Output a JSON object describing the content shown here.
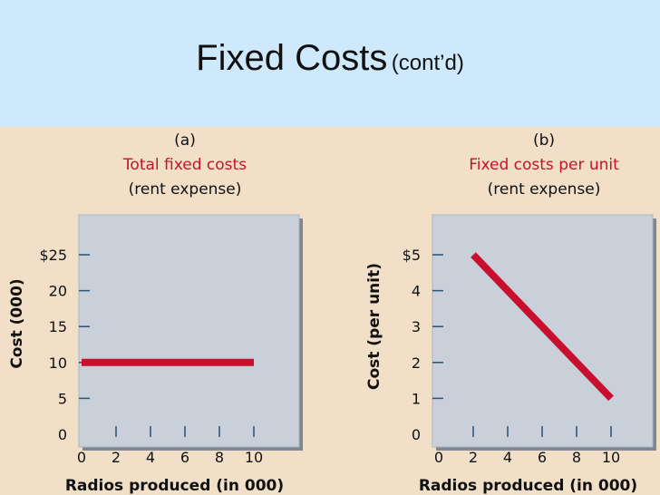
{
  "slide": {
    "title": "Fixed Costs",
    "subtitle": "(cont’d)"
  },
  "colors": {
    "header_bg": "#cde9fb",
    "content_bg": "#f1dfc8",
    "plot_bg": "#c9d0d9",
    "line": "#c8102e",
    "label_red": "#c8102e"
  },
  "chart_data": [
    {
      "type": "line",
      "panel_label": "(a)",
      "title": "Total fixed costs",
      "subtitle": "(rent expense)",
      "xlabel": "Radios produced (in 000)",
      "ylabel": "Cost (000)",
      "x_ticks": [
        "0",
        "2",
        "4",
        "6",
        "8",
        "10"
      ],
      "y_ticks": [
        "0",
        "5",
        "10",
        "15",
        "20",
        "$25"
      ],
      "xlim": [
        0,
        12.5
      ],
      "ylim": [
        0,
        30
      ],
      "series": [
        {
          "x": [
            0,
            10
          ],
          "y": [
            10,
            10
          ]
        }
      ]
    },
    {
      "type": "line",
      "panel_label": "(b)",
      "title": "Fixed costs per unit",
      "subtitle": "(rent expense)",
      "xlabel": "Radios produced (in 000)",
      "ylabel": "Cost (per unit)",
      "x_ticks": [
        "0",
        "2",
        "4",
        "6",
        "8",
        "10"
      ],
      "y_ticks": [
        "0",
        "1",
        "2",
        "3",
        "4",
        "$5"
      ],
      "xlim": [
        0,
        12.5
      ],
      "ylim": [
        0,
        6
      ],
      "series": [
        {
          "x": [
            2,
            10
          ],
          "y": [
            5,
            1
          ]
        }
      ]
    }
  ]
}
